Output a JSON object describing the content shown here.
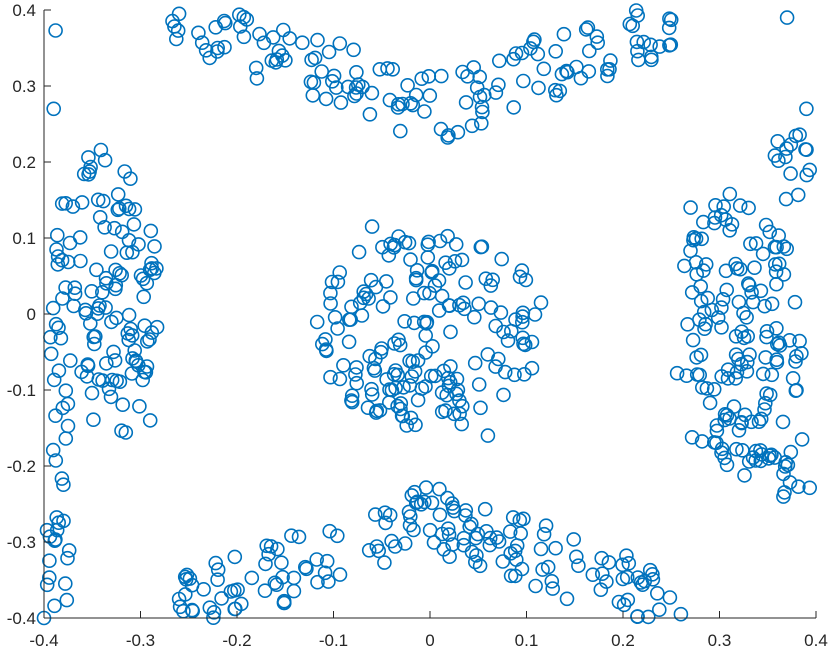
{
  "chart_data": {
    "type": "scatter",
    "title": "",
    "xlabel": "",
    "ylabel": "",
    "xlim": [
      -0.4,
      0.4
    ],
    "ylim": [
      -0.4,
      0.4
    ],
    "xticks": [
      "-0.4",
      "-0.3",
      "-0.2",
      "-0.1",
      "0",
      "0.1",
      "0.2",
      "0.3",
      "0.4"
    ],
    "yticks": [
      "0.4",
      "0.3",
      "0.2",
      "0.1",
      "0",
      "-0.1",
      "-0.2",
      "-0.3",
      "-0.4"
    ],
    "grid": false,
    "legend": "none",
    "marker": "open-circle",
    "color": "#0072BD",
    "series": [
      {
        "clusters": [
          {
            "label": "center",
            "cx": 0.0,
            "cy": -0.02,
            "rx": 0.12,
            "ry": 0.13,
            "count": 180
          },
          {
            "label": "top-arc",
            "cx": 0.0,
            "cy": 0.31,
            "rx": 0.27,
            "ry": 0.09,
            "count": 150
          },
          {
            "label": "bottom-arc",
            "cx": 0.0,
            "cy": -0.31,
            "rx": 0.26,
            "ry": 0.09,
            "count": 170
          },
          {
            "label": "left-band",
            "cx": -0.34,
            "cy": 0.02,
            "rx": 0.06,
            "ry": 0.2,
            "count": 130
          },
          {
            "label": "right-band",
            "cx": 0.32,
            "cy": -0.03,
            "rx": 0.07,
            "ry": 0.19,
            "count": 150
          },
          {
            "label": "left-lower-strip",
            "cx": -0.385,
            "cy": -0.26,
            "rx": 0.02,
            "ry": 0.13,
            "count": 25
          },
          {
            "label": "right-upper-strip",
            "cx": 0.37,
            "cy": 0.2,
            "rx": 0.025,
            "ry": 0.05,
            "count": 15
          },
          {
            "label": "right-lower-strip",
            "cx": 0.37,
            "cy": -0.2,
            "rx": 0.03,
            "ry": 0.06,
            "count": 15
          }
        ],
        "points": [
          [
            -0.388,
            0.373
          ],
          [
            -0.39,
            0.27
          ],
          [
            -0.26,
            0.395
          ],
          [
            -0.24,
            0.37
          ],
          [
            -0.22,
            0.35
          ],
          [
            0.37,
            0.39
          ],
          [
            0.39,
            0.27
          ],
          [
            -0.4,
            -0.4
          ],
          [
            0.26,
            -0.395
          ],
          [
            -0.26,
            -0.375
          ],
          [
            0.06,
            -0.16
          ],
          [
            -0.29,
            -0.14
          ],
          [
            0.02,
            0.06
          ],
          [
            -0.06,
            0.115
          ],
          [
            0.27,
            0.14
          ]
        ]
      }
    ]
  }
}
